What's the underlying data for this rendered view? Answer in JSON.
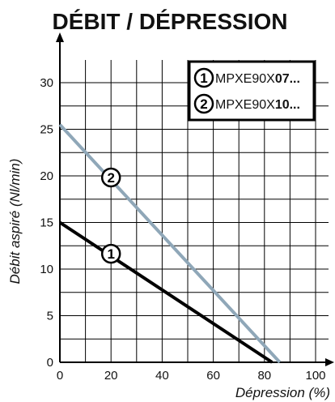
{
  "chart_data": {
    "type": "line",
    "title": "DÉBIT / DÉPRESSION",
    "xlabel": "Dépression (%)",
    "ylabel": "Débit aspiré (Nl/min)",
    "xlim": [
      0,
      100
    ],
    "ylim": [
      0,
      30
    ],
    "x_ticks": [
      "0",
      "20",
      "40",
      "60",
      "80",
      "100"
    ],
    "y_ticks": [
      "0",
      "5",
      "10",
      "15",
      "20",
      "25",
      "30"
    ],
    "grid": true,
    "legend_position": "top-right",
    "series": [
      {
        "name": "MPXE90X07...",
        "name_prefix": "MPXE90X",
        "name_bold": "07...",
        "marker": "1",
        "color": "#000000",
        "x": [
          0,
          83
        ],
        "y": [
          15,
          0
        ]
      },
      {
        "name": "MPXE90X10...",
        "name_prefix": "MPXE90X",
        "name_bold": "10...",
        "marker": "2",
        "color": "#8fa7b8",
        "x": [
          0,
          86
        ],
        "y": [
          25.5,
          0
        ]
      }
    ]
  }
}
